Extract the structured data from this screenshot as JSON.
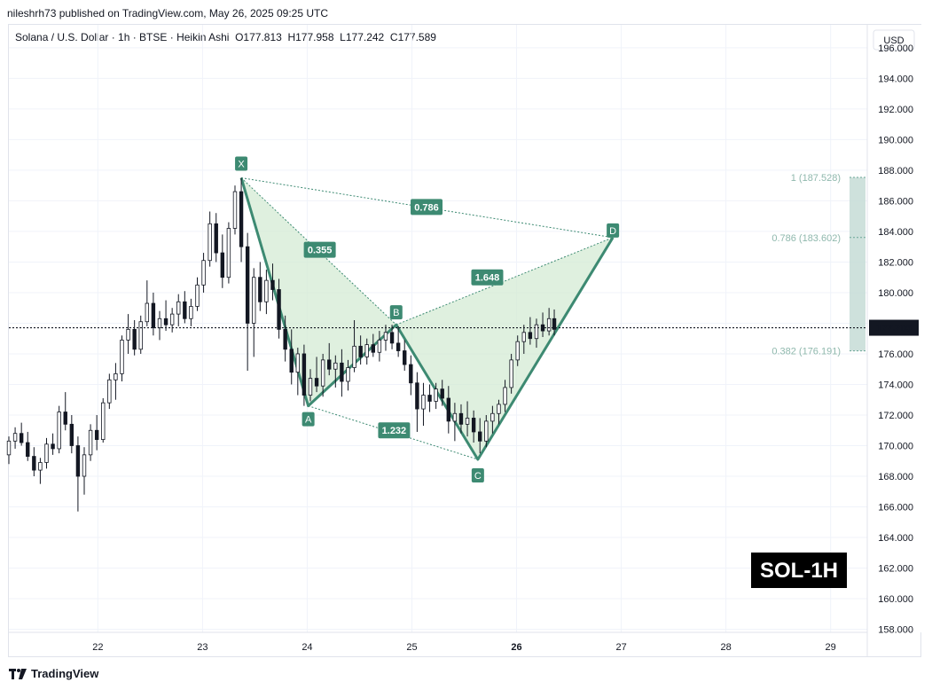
{
  "header": {
    "published": "nileshrh73 published on TradingView.com, May 26, 2025 09:25 UTC",
    "title": "Solana / U.S. Dollar · 1h · BTSE · Heikin Ashi  O177.813  H177.958  L177.242  C177.589",
    "currency": "USD"
  },
  "footer": {
    "logo_text": "TradingView"
  },
  "badge": {
    "text": "SOL-1H"
  },
  "colors": {
    "pattern_line": "#3d8a72",
    "pattern_fill": "#d4ebd4",
    "label_bg": "#3d8a72",
    "zone_fill": "#c5dcd6",
    "candle": "#131722"
  },
  "chart_data": {
    "type": "candlestick",
    "x_ticks": [
      "22",
      "23",
      "24",
      "25",
      "26",
      "27",
      "28",
      "29"
    ],
    "x_tick_positions": [
      22,
      23,
      24,
      25,
      26,
      27,
      28,
      29
    ],
    "xlim": [
      21.15,
      29.35
    ],
    "ylim": [
      157.8,
      197.5
    ],
    "y_ticks": [
      "158.000",
      "160.000",
      "162.000",
      "164.000",
      "166.000",
      "168.000",
      "170.000",
      "172.000",
      "174.000",
      "176.000",
      "178.000",
      "180.000",
      "182.000",
      "184.000",
      "186.000",
      "188.000",
      "190.000",
      "192.000",
      "194.000",
      "196.000"
    ],
    "y_tick_values": [
      158,
      160,
      162,
      164,
      166,
      168,
      170,
      172,
      174,
      176,
      178,
      180,
      182,
      184,
      186,
      188,
      190,
      192,
      194,
      196
    ],
    "last_price": {
      "label": "177.705",
      "value": 177.705
    },
    "pattern": {
      "points": [
        {
          "name": "X",
          "x": 23.37,
          "y": 187.5
        },
        {
          "name": "A",
          "x": 24.01,
          "y": 172.6
        },
        {
          "name": "B",
          "x": 24.85,
          "y": 177.9
        },
        {
          "name": "C",
          "x": 25.63,
          "y": 169.1
        },
        {
          "name": "D",
          "x": 26.92,
          "y": 183.6
        }
      ],
      "ratios": [
        {
          "text": "0.355",
          "x": 24.12,
          "y": 182.8
        },
        {
          "text": "0.786",
          "x": 25.14,
          "y": 185.6
        },
        {
          "text": "1.648",
          "x": 25.72,
          "y": 181.0
        },
        {
          "text": "1.232",
          "x": 24.83,
          "y": 171.0
        }
      ]
    },
    "fib_levels": [
      {
        "label": "1 (187.528)",
        "value": 187.528
      },
      {
        "label": "0.786 (183.602)",
        "value": 183.602
      },
      {
        "label": "0.382 (176.191)",
        "value": 176.191
      }
    ],
    "candles": [
      [
        21.15,
        169.4,
        170.6,
        168.8,
        170.3
      ],
      [
        21.21,
        170.3,
        171.2,
        169.8,
        170.8
      ],
      [
        21.27,
        170.8,
        171.5,
        170.0,
        170.2
      ],
      [
        21.33,
        170.2,
        170.9,
        169.0,
        169.3
      ],
      [
        21.39,
        169.3,
        169.9,
        168.0,
        168.4
      ],
      [
        21.45,
        168.4,
        169.2,
        167.5,
        168.9
      ],
      [
        21.51,
        168.9,
        170.5,
        168.5,
        170.1
      ],
      [
        21.57,
        170.1,
        170.8,
        169.4,
        169.8
      ],
      [
        21.63,
        169.8,
        172.6,
        169.5,
        172.2
      ],
      [
        21.69,
        172.2,
        173.5,
        171.0,
        171.4
      ],
      [
        21.75,
        171.4,
        172.0,
        169.5,
        170.0
      ],
      [
        21.81,
        170.0,
        170.6,
        165.7,
        168.0
      ],
      [
        21.87,
        168.0,
        169.9,
        166.8,
        169.4
      ],
      [
        21.93,
        169.4,
        171.4,
        169.0,
        171.0
      ],
      [
        21.99,
        171.0,
        172.0,
        169.7,
        170.4
      ],
      [
        22.05,
        170.4,
        173.1,
        170.2,
        172.8
      ],
      [
        22.11,
        172.8,
        174.7,
        172.4,
        174.3
      ],
      [
        22.17,
        174.3,
        175.4,
        173.0,
        174.7
      ],
      [
        22.23,
        174.7,
        177.2,
        174.2,
        176.9
      ],
      [
        22.29,
        176.9,
        178.6,
        176.0,
        177.6
      ],
      [
        22.35,
        177.6,
        178.2,
        175.9,
        176.3
      ],
      [
        22.41,
        176.3,
        178.5,
        176.0,
        178.1
      ],
      [
        22.47,
        178.1,
        180.8,
        177.8,
        179.3
      ],
      [
        22.53,
        179.3,
        180.0,
        177.2,
        177.7
      ],
      [
        22.59,
        177.7,
        178.8,
        176.9,
        178.3
      ],
      [
        22.65,
        178.3,
        179.5,
        177.5,
        177.9
      ],
      [
        22.71,
        177.9,
        179.0,
        177.4,
        178.6
      ],
      [
        22.77,
        178.6,
        179.9,
        177.8,
        179.4
      ],
      [
        22.83,
        179.4,
        180.1,
        178.0,
        178.3
      ],
      [
        22.89,
        178.3,
        179.6,
        177.8,
        179.1
      ],
      [
        22.95,
        179.1,
        181.0,
        178.8,
        180.5
      ],
      [
        23.01,
        180.5,
        182.6,
        180.0,
        182.1
      ],
      [
        23.07,
        182.1,
        185.3,
        181.7,
        184.5
      ],
      [
        23.13,
        184.5,
        185.2,
        182.0,
        182.6
      ],
      [
        23.19,
        182.6,
        183.8,
        180.3,
        181.0
      ],
      [
        23.25,
        181.0,
        184.6,
        180.6,
        184.2
      ],
      [
        23.31,
        184.2,
        187.0,
        183.8,
        186.6
      ],
      [
        23.37,
        186.6,
        187.5,
        182.0,
        183.0
      ],
      [
        23.43,
        183.0,
        183.9,
        174.9,
        178.0
      ],
      [
        23.49,
        178.0,
        181.6,
        175.8,
        181.0
      ],
      [
        23.55,
        181.0,
        182.0,
        178.8,
        179.4
      ],
      [
        23.61,
        179.4,
        181.5,
        178.6,
        180.8
      ],
      [
        23.67,
        180.8,
        181.9,
        179.5,
        180.2
      ],
      [
        23.73,
        180.2,
        180.9,
        177.0,
        177.6
      ],
      [
        23.79,
        177.6,
        178.5,
        175.5,
        176.3
      ],
      [
        23.85,
        176.3,
        177.6,
        174.0,
        174.8
      ],
      [
        23.91,
        174.8,
        176.4,
        173.3,
        176.0
      ],
      [
        23.97,
        176.0,
        176.6,
        172.6,
        173.3
      ],
      [
        24.03,
        173.3,
        175.0,
        172.9,
        174.4
      ],
      [
        24.09,
        174.4,
        175.8,
        173.5,
        173.9
      ],
      [
        24.15,
        173.9,
        176.0,
        173.2,
        175.6
      ],
      [
        24.21,
        175.6,
        176.7,
        174.6,
        175.0
      ],
      [
        24.27,
        175.0,
        175.9,
        173.8,
        175.4
      ],
      [
        24.33,
        175.4,
        176.3,
        173.2,
        174.2
      ],
      [
        24.39,
        174.2,
        175.6,
        173.6,
        175.1
      ],
      [
        24.45,
        175.1,
        178.2,
        174.8,
        176.5
      ],
      [
        24.51,
        176.5,
        177.2,
        175.3,
        175.8
      ],
      [
        24.57,
        175.8,
        177.0,
        175.3,
        176.6
      ],
      [
        24.63,
        176.6,
        177.3,
        175.8,
        176.1
      ],
      [
        24.69,
        176.1,
        177.5,
        175.5,
        176.9
      ],
      [
        24.75,
        176.9,
        177.9,
        176.2,
        177.4
      ],
      [
        24.81,
        177.4,
        177.9,
        176.3,
        176.7
      ],
      [
        24.87,
        176.7,
        177.8,
        175.8,
        176.2
      ],
      [
        24.93,
        176.2,
        176.9,
        174.9,
        175.3
      ],
      [
        24.99,
        175.3,
        175.9,
        173.3,
        174.1
      ],
      [
        25.05,
        174.1,
        174.8,
        170.9,
        172.4
      ],
      [
        25.11,
        172.4,
        174.1,
        171.3,
        173.3
      ],
      [
        25.17,
        173.3,
        174.0,
        172.2,
        172.9
      ],
      [
        25.23,
        172.9,
        174.1,
        172.4,
        173.7
      ],
      [
        25.29,
        173.7,
        174.3,
        172.6,
        173.1
      ],
      [
        25.35,
        173.1,
        173.9,
        170.8,
        171.6
      ],
      [
        25.41,
        171.6,
        172.8,
        170.3,
        172.1
      ],
      [
        25.47,
        172.1,
        172.7,
        170.8,
        171.4
      ],
      [
        25.53,
        171.4,
        172.9,
        170.6,
        171.8
      ],
      [
        25.59,
        171.8,
        172.3,
        170.2,
        170.9
      ],
      [
        25.65,
        170.9,
        171.8,
        169.5,
        170.3
      ],
      [
        25.71,
        170.3,
        172.0,
        169.9,
        171.6
      ],
      [
        25.77,
        171.6,
        172.6,
        170.8,
        172.1
      ],
      [
        25.83,
        172.1,
        173.0,
        171.4,
        172.7
      ],
      [
        25.89,
        172.7,
        174.3,
        172.2,
        173.8
      ],
      [
        25.95,
        173.8,
        176.0,
        173.4,
        175.6
      ],
      [
        26.01,
        175.6,
        177.2,
        175.2,
        176.8
      ],
      [
        26.07,
        176.8,
        177.9,
        176.0,
        177.4
      ],
      [
        26.13,
        177.4,
        178.4,
        176.6,
        177.0
      ],
      [
        26.19,
        177.0,
        178.3,
        176.4,
        177.9
      ],
      [
        26.25,
        177.9,
        178.7,
        177.1,
        177.5
      ],
      [
        26.31,
        177.5,
        179.0,
        177.2,
        178.3
      ],
      [
        26.36,
        178.3,
        178.9,
        177.2,
        177.6
      ]
    ]
  }
}
